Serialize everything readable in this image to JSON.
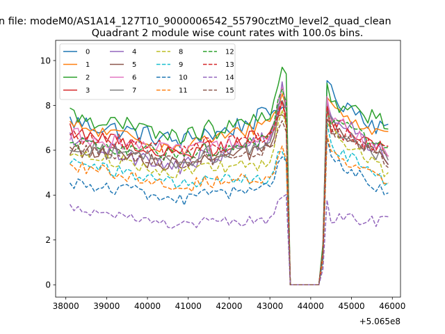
{
  "chart_data": {
    "type": "line",
    "suptitle": "n file: modeM0/AS1A14_127T10_9000006542_55790cztM0_level2_quad_clean",
    "title": "Quadrant 2 module wise count rates with 100.0s bins.",
    "xlabel": "",
    "ylabel": "",
    "x_offset_label": "+5.065e8",
    "xlim": [
      37750,
      46200
    ],
    "ylim": [
      -0.55,
      10.9
    ],
    "x_ticks": [
      38000,
      39000,
      40000,
      41000,
      42000,
      43000,
      44000,
      45000,
      46000
    ],
    "x_tick_labels": [
      "38000",
      "39000",
      "40000",
      "41000",
      "42000",
      "43000",
      "44000",
      "45000",
      "46000"
    ],
    "y_ticks": [
      0,
      2,
      4,
      6,
      8,
      10
    ],
    "y_tick_labels": [
      "0",
      "2",
      "4",
      "6",
      "8",
      "10"
    ],
    "x_start": 38100,
    "x_step": 100,
    "num_points": 79,
    "gap_range": [
      43500,
      44200
    ],
    "legend": {
      "location": "top-left",
      "columns": 4
    },
    "series": [
      {
        "name": "0",
        "color": "#1f77b4",
        "dashed": false,
        "levels": [
          7.3,
          6.6,
          6.5,
          7.6,
          8.3,
          6.8,
          9.3
        ],
        "amp": 0.45
      },
      {
        "name": "1",
        "color": "#ff7f0e",
        "dashed": false,
        "levels": [
          7.1,
          6.3,
          6.1,
          7.3,
          8.6,
          6.5,
          8.7
        ],
        "amp": 0.35
      },
      {
        "name": "2",
        "color": "#2ca02c",
        "dashed": false,
        "levels": [
          7.6,
          6.8,
          6.6,
          7.4,
          10.4,
          7.3,
          8.8
        ],
        "amp": 0.4
      },
      {
        "name": "3",
        "color": "#d62728",
        "dashed": false,
        "levels": [
          6.9,
          6.0,
          5.8,
          6.8,
          8.4,
          6.0,
          8.1
        ],
        "amp": 0.35
      },
      {
        "name": "4",
        "color": "#9467bd",
        "dashed": false,
        "levels": [
          6.4,
          5.5,
          5.3,
          6.6,
          9.0,
          5.6,
          8.4
        ],
        "amp": 0.4
      },
      {
        "name": "5",
        "color": "#8c564b",
        "dashed": false,
        "levels": [
          6.1,
          5.5,
          5.2,
          6.1,
          7.9,
          5.5,
          7.7
        ],
        "amp": 0.35
      },
      {
        "name": "6",
        "color": "#e377c2",
        "dashed": false,
        "levels": [
          6.7,
          6.1,
          5.7,
          6.4,
          8.9,
          5.8,
          8.3
        ],
        "amp": 0.35
      },
      {
        "name": "7",
        "color": "#7f7f7f",
        "dashed": false,
        "levels": [
          6.2,
          5.7,
          5.4,
          6.3,
          8.7,
          5.6,
          7.9
        ],
        "amp": 0.35
      },
      {
        "name": "8",
        "color": "#bcbd22",
        "dashed": true,
        "levels": [
          5.9,
          5.2,
          4.6,
          5.4,
          8.0,
          5.0,
          7.5
        ],
        "amp": 0.3
      },
      {
        "name": "9",
        "color": "#17becf",
        "dashed": true,
        "levels": [
          5.5,
          4.7,
          4.2,
          4.7,
          6.4,
          4.5,
          7.0
        ],
        "amp": 0.3
      },
      {
        "name": "10",
        "color": "#1f77b4",
        "dashed": true,
        "levels": [
          4.6,
          4.0,
          3.6,
          4.3,
          5.9,
          4.0,
          6.5
        ],
        "amp": 0.3
      },
      {
        "name": "11",
        "color": "#ff7f0e",
        "dashed": true,
        "levels": [
          5.4,
          4.6,
          4.1,
          4.7,
          6.1,
          4.4,
          6.8
        ],
        "amp": 0.3
      },
      {
        "name": "12",
        "color": "#2ca02c",
        "dashed": true,
        "levels": [
          6.3,
          5.9,
          5.6,
          6.6,
          9.1,
          5.9,
          8.1
        ],
        "amp": 0.35
      },
      {
        "name": "13",
        "color": "#d62728",
        "dashed": true,
        "levels": [
          6.6,
          6.2,
          5.9,
          6.6,
          8.2,
          5.9,
          7.8
        ],
        "amp": 0.35
      },
      {
        "name": "14",
        "color": "#9467bd",
        "dashed": true,
        "levels": [
          3.5,
          2.8,
          2.4,
          2.9,
          4.2,
          2.8,
          3.8
        ],
        "amp": 0.25
      },
      {
        "name": "15",
        "color": "#8c564b",
        "dashed": true,
        "levels": [
          6.0,
          5.6,
          5.3,
          6.0,
          7.4,
          5.5,
          7.6
        ],
        "amp": 0.3
      }
    ]
  }
}
